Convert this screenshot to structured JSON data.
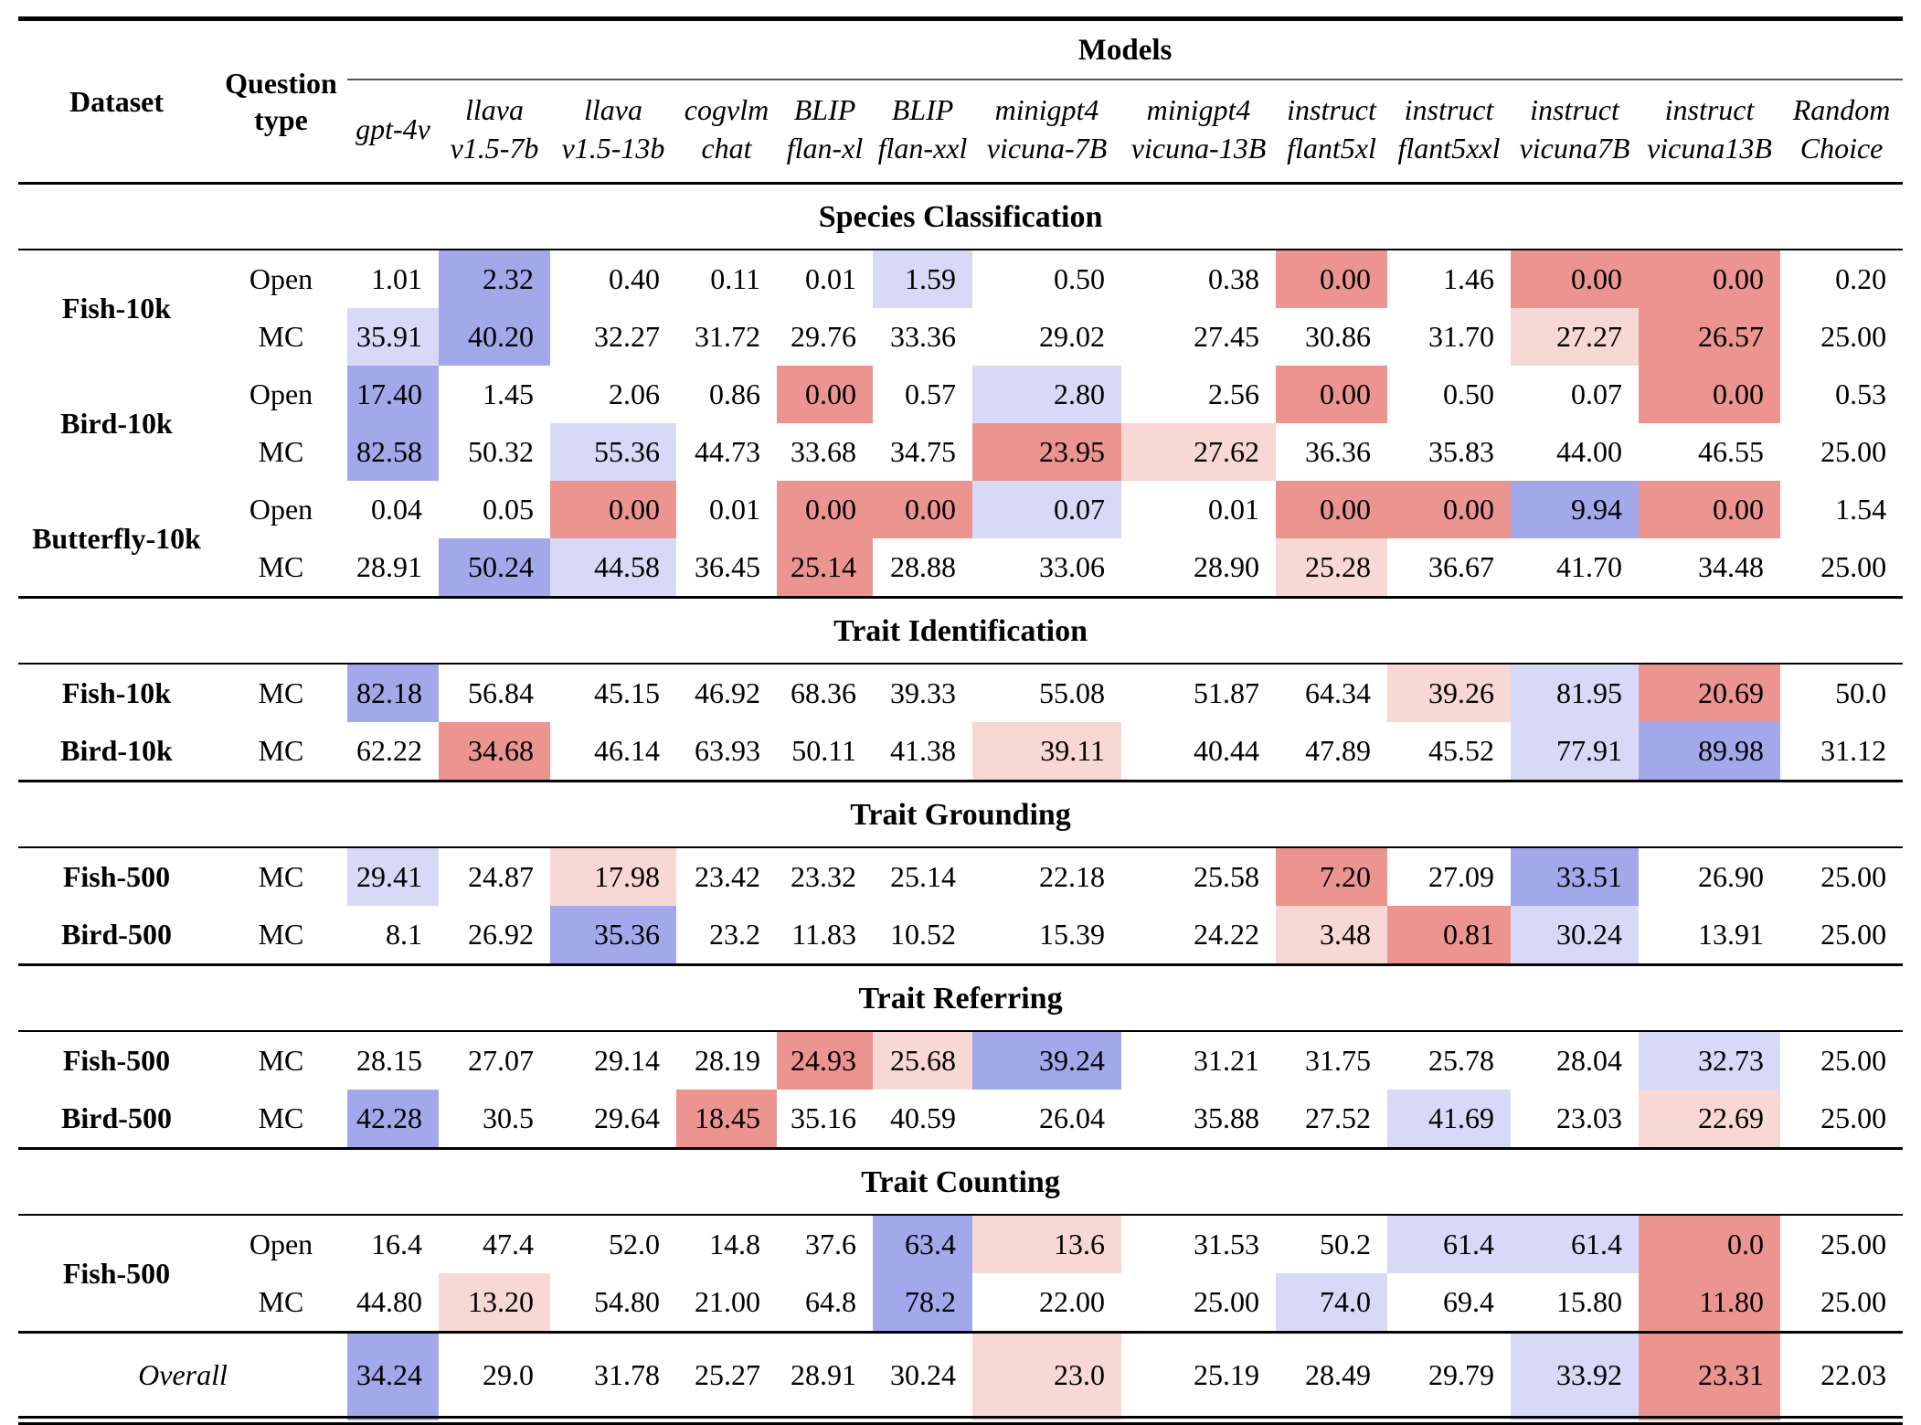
{
  "header": {
    "models_label": "Models",
    "dataset_label": "Dataset",
    "question_label_line1": "Question",
    "question_label_line2": "type",
    "columns": [
      {
        "lines": [
          "gpt-4v"
        ]
      },
      {
        "lines": [
          "llava",
          "v1.5-7b"
        ]
      },
      {
        "lines": [
          "llava",
          "v1.5-13b"
        ]
      },
      {
        "lines": [
          "cogvlm",
          "chat"
        ]
      },
      {
        "lines": [
          "BLIP",
          "flan-xl"
        ]
      },
      {
        "lines": [
          "BLIP",
          "flan-xxl"
        ]
      },
      {
        "lines": [
          "minigpt4",
          "vicuna-7B"
        ]
      },
      {
        "lines": [
          "minigpt4",
          "vicuna-13B"
        ]
      },
      {
        "lines": [
          "instruct",
          "flant5xl"
        ]
      },
      {
        "lines": [
          "instruct",
          "flant5xxl"
        ]
      },
      {
        "lines": [
          "instruct",
          "vicuna7B"
        ]
      },
      {
        "lines": [
          "instruct",
          "vicuna13B"
        ]
      },
      {
        "lines": [
          "Random",
          "Choice"
        ]
      }
    ]
  },
  "colors": {
    "strong_blue": "#a3a8ea",
    "light_blue": "#d8d9f7",
    "strong_red": "#ec9490",
    "light_pink": "#f8d8d4"
  },
  "sections": [
    {
      "title": "Species Classification",
      "rows": [
        {
          "dataset": {
            "label": "Fish-10k",
            "rowspan": 2
          },
          "qtype": "Open",
          "values": [
            "1.01",
            "2.32",
            "0.40",
            "0.11",
            "0.01",
            "1.59",
            "0.50",
            "0.38",
            "0.00",
            "1.46",
            "0.00",
            "0.00",
            "0.20"
          ],
          "hl": [
            "",
            "B",
            "",
            "",
            "",
            "b",
            "",
            "",
            "R",
            "",
            "R",
            "R",
            ""
          ]
        },
        {
          "dataset": null,
          "qtype": "MC",
          "values": [
            "35.91",
            "40.20",
            "32.27",
            "31.72",
            "29.76",
            "33.36",
            "29.02",
            "27.45",
            "30.86",
            "31.70",
            "27.27",
            "26.57",
            "25.00"
          ],
          "hl": [
            "b",
            "B",
            "",
            "",
            "",
            "",
            "",
            "",
            "",
            "",
            "r",
            "R",
            ""
          ]
        },
        {
          "dataset": {
            "label": "Bird-10k",
            "rowspan": 2
          },
          "qtype": "Open",
          "values": [
            "17.40",
            "1.45",
            "2.06",
            "0.86",
            "0.00",
            "0.57",
            "2.80",
            "2.56",
            "0.00",
            "0.50",
            "0.07",
            "0.00",
            "0.53"
          ],
          "hl": [
            "B",
            "",
            "",
            "",
            "R",
            "",
            "b",
            "",
            "R",
            "",
            "",
            "R",
            ""
          ]
        },
        {
          "dataset": null,
          "qtype": "MC",
          "values": [
            "82.58",
            "50.32",
            "55.36",
            "44.73",
            "33.68",
            "34.75",
            "23.95",
            "27.62",
            "36.36",
            "35.83",
            "44.00",
            "46.55",
            "25.00"
          ],
          "hl": [
            "B",
            "",
            "b",
            "",
            "",
            "",
            "R",
            "r",
            "",
            "",
            "",
            "",
            ""
          ]
        },
        {
          "dataset": {
            "label": "Butterfly-10k",
            "rowspan": 2
          },
          "qtype": "Open",
          "values": [
            "0.04",
            "0.05",
            "0.00",
            "0.01",
            "0.00",
            "0.00",
            "0.07",
            "0.01",
            "0.00",
            "0.00",
            "9.94",
            "0.00",
            "1.54"
          ],
          "hl": [
            "",
            "",
            "R",
            "",
            "R",
            "R",
            "b",
            "",
            "R",
            "R",
            "B",
            "R",
            ""
          ]
        },
        {
          "dataset": null,
          "qtype": "MC",
          "values": [
            "28.91",
            "50.24",
            "44.58",
            "36.45",
            "25.14",
            "28.88",
            "33.06",
            "28.90",
            "25.28",
            "36.67",
            "41.70",
            "34.48",
            "25.00"
          ],
          "hl": [
            "",
            "B",
            "b",
            "",
            "R",
            "",
            "",
            "",
            "r",
            "",
            "",
            "",
            ""
          ]
        }
      ]
    },
    {
      "title": "Trait Identification",
      "rows": [
        {
          "dataset": {
            "label": "Fish-10k",
            "rowspan": 1
          },
          "qtype": "MC",
          "values": [
            "82.18",
            "56.84",
            "45.15",
            "46.92",
            "68.36",
            "39.33",
            "55.08",
            "51.87",
            "64.34",
            "39.26",
            "81.95",
            "20.69",
            "50.0"
          ],
          "hl": [
            "B",
            "",
            "",
            "",
            "",
            "",
            "",
            "",
            "",
            "r",
            "b",
            "R",
            ""
          ]
        },
        {
          "dataset": {
            "label": "Bird-10k",
            "rowspan": 1
          },
          "qtype": "MC",
          "values": [
            "62.22",
            "34.68",
            "46.14",
            "63.93",
            "50.11",
            "41.38",
            "39.11",
            "40.44",
            "47.89",
            "45.52",
            "77.91",
            "89.98",
            "31.12"
          ],
          "hl": [
            "",
            "R",
            "",
            "",
            "",
            "",
            "r",
            "",
            "",
            "",
            "b",
            "B",
            ""
          ]
        }
      ]
    },
    {
      "title": "Trait Grounding",
      "rows": [
        {
          "dataset": {
            "label": "Fish-500",
            "rowspan": 1
          },
          "qtype": "MC",
          "values": [
            "29.41",
            "24.87",
            "17.98",
            "23.42",
            "23.32",
            "25.14",
            "22.18",
            "25.58",
            "7.20",
            "27.09",
            "33.51",
            "26.90",
            "25.00"
          ],
          "hl": [
            "b",
            "",
            "r",
            "",
            "",
            "",
            "",
            "",
            "R",
            "",
            "B",
            "",
            ""
          ]
        },
        {
          "dataset": {
            "label": "Bird-500",
            "rowspan": 1
          },
          "qtype": "MC",
          "values": [
            "8.1",
            "26.92",
            "35.36",
            "23.2",
            "11.83",
            "10.52",
            "15.39",
            "24.22",
            "3.48",
            "0.81",
            "30.24",
            "13.91",
            "25.00"
          ],
          "hl": [
            "",
            "",
            "B",
            "",
            "",
            "",
            "",
            "",
            "r",
            "R",
            "b",
            "",
            ""
          ]
        }
      ]
    },
    {
      "title": "Trait Referring",
      "rows": [
        {
          "dataset": {
            "label": "Fish-500",
            "rowspan": 1
          },
          "qtype": "MC",
          "values": [
            "28.15",
            "27.07",
            "29.14",
            "28.19",
            "24.93",
            "25.68",
            "39.24",
            "31.21",
            "31.75",
            "25.78",
            "28.04",
            "32.73",
            "25.00"
          ],
          "hl": [
            "",
            "",
            "",
            "",
            "R",
            "r",
            "B",
            "",
            "",
            "",
            "",
            "b",
            ""
          ]
        },
        {
          "dataset": {
            "label": "Bird-500",
            "rowspan": 1
          },
          "qtype": "MC",
          "values": [
            "42.28",
            "30.5",
            "29.64",
            "18.45",
            "35.16",
            "40.59",
            "26.04",
            "35.88",
            "27.52",
            "41.69",
            "23.03",
            "22.69",
            "25.00"
          ],
          "hl": [
            "B",
            "",
            "",
            "R",
            "",
            "",
            "",
            "",
            "",
            "b",
            "",
            "r",
            ""
          ]
        }
      ]
    },
    {
      "title": "Trait Counting",
      "rows": [
        {
          "dataset": {
            "label": "Fish-500",
            "rowspan": 2
          },
          "qtype": "Open",
          "values": [
            "16.4",
            "47.4",
            "52.0",
            "14.8",
            "37.6",
            "63.4",
            "13.6",
            "31.53",
            "50.2",
            "61.4",
            "61.4",
            "0.0",
            "25.00"
          ],
          "hl": [
            "",
            "",
            "",
            "",
            "",
            "B",
            "r",
            "",
            "",
            "b",
            "b",
            "R",
            ""
          ]
        },
        {
          "dataset": null,
          "qtype": "MC",
          "values": [
            "44.80",
            "13.20",
            "54.80",
            "21.00",
            "64.8",
            "78.2",
            "22.00",
            "25.00",
            "74.0",
            "69.4",
            "15.80",
            "11.80",
            "25.00"
          ],
          "hl": [
            "",
            "r",
            "",
            "",
            "",
            "B",
            "",
            "",
            "b",
            "",
            "",
            "R",
            ""
          ]
        }
      ]
    }
  ],
  "overall": {
    "label": "Overall",
    "values": [
      "34.24",
      "29.0",
      "31.78",
      "25.27",
      "28.91",
      "30.24",
      "23.0",
      "25.19",
      "28.49",
      "29.79",
      "33.92",
      "23.31",
      "22.03"
    ],
    "hl": [
      "B",
      "",
      "",
      "",
      "",
      "",
      "r",
      "",
      "",
      "",
      "b",
      "R",
      ""
    ]
  }
}
